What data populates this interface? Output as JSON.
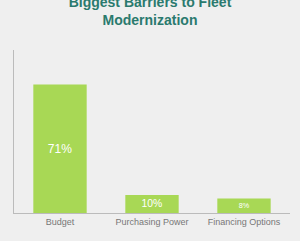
{
  "chart_data": {
    "type": "bar",
    "title": "Biggest Barriers to Fleet\nModernization",
    "categories": [
      "Budget",
      "Purchasing Power",
      "Financing Options"
    ],
    "values": [
      71,
      10,
      8
    ],
    "value_labels": [
      "71%",
      "10%",
      "8%"
    ],
    "data_labels": true,
    "color": "#a8d855",
    "ylim": [
      0,
      90
    ],
    "yticks": [],
    "grid": false,
    "tick_labels": "x"
  }
}
